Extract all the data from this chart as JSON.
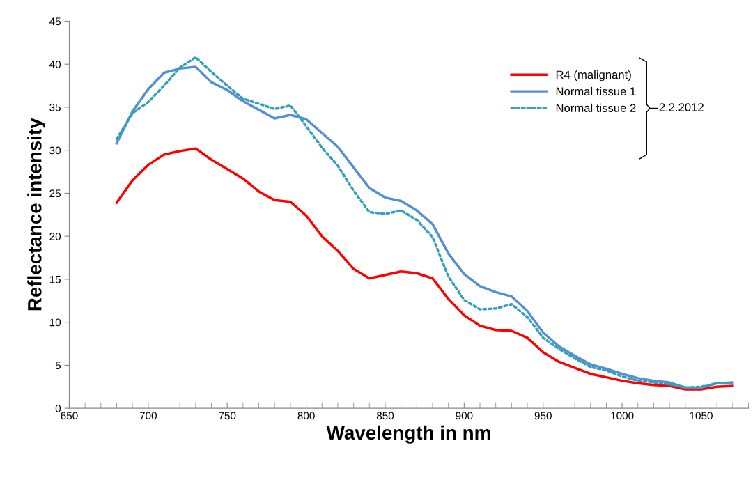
{
  "chart_data": {
    "type": "line",
    "xlabel": "Wavelength in nm",
    "ylabel": "Reflectance intensity",
    "x": [
      680,
      690,
      700,
      710,
      720,
      730,
      740,
      750,
      760,
      770,
      780,
      790,
      800,
      810,
      820,
      830,
      840,
      850,
      860,
      870,
      880,
      890,
      900,
      910,
      920,
      930,
      940,
      950,
      960,
      970,
      980,
      990,
      1000,
      1010,
      1020,
      1030,
      1040,
      1050,
      1060,
      1070
    ],
    "series": [
      {
        "name": "R4 (malignant)",
        "color": "#ff0000",
        "line_style": "solid",
        "values": [
          23.9,
          26.5,
          28.3,
          29.5,
          29.9,
          30.2,
          28.9,
          27.8,
          26.7,
          25.2,
          24.2,
          24.0,
          22.4,
          20.0,
          18.3,
          16.2,
          15.1,
          15.5,
          15.9,
          15.7,
          15.1,
          12.7,
          10.8,
          9.6,
          9.1,
          9.0,
          8.2,
          6.5,
          5.4,
          4.7,
          4.0,
          3.6,
          3.2,
          2.9,
          2.7,
          2.6,
          2.2,
          2.2,
          2.5,
          2.6
        ]
      },
      {
        "name": "Normal tissue 1",
        "color": "#558ed5",
        "line_style": "solid",
        "values": [
          30.8,
          34.5,
          37.1,
          39.0,
          39.5,
          39.7,
          37.9,
          37.0,
          35.7,
          34.7,
          33.7,
          34.1,
          33.6,
          32.0,
          30.4,
          28.0,
          25.6,
          24.5,
          24.1,
          23.0,
          21.4,
          18.0,
          15.6,
          14.2,
          13.5,
          13.0,
          11.3,
          8.8,
          7.2,
          6.1,
          5.1,
          4.6,
          4.0,
          3.5,
          3.2,
          3.0,
          2.4,
          2.4,
          2.9,
          3.0
        ]
      },
      {
        "name": "Normal tissue 2",
        "color": "#31a0b8",
        "line_style": "dotted",
        "values": [
          31.3,
          34.3,
          35.6,
          37.5,
          39.6,
          40.8,
          39.1,
          37.5,
          36.0,
          35.4,
          34.8,
          35.2,
          32.8,
          30.3,
          28.2,
          25.3,
          22.8,
          22.6,
          23.0,
          21.9,
          19.9,
          15.3,
          12.6,
          11.5,
          11.6,
          12.1,
          10.6,
          8.2,
          6.9,
          5.8,
          4.8,
          4.4,
          3.7,
          3.2,
          3.0,
          2.8,
          2.4,
          2.5,
          2.9,
          2.9
        ]
      }
    ],
    "annotations": [
      "2.2.2012"
    ],
    "xlim": [
      650,
      1080
    ],
    "xticks": [
      650,
      700,
      750,
      800,
      850,
      900,
      950,
      1000,
      1050
    ],
    "ylim": [
      0,
      45
    ],
    "yticks": [
      0,
      5,
      10,
      15,
      20,
      25,
      30,
      35,
      40,
      45
    ],
    "grid": false,
    "legend": "top right",
    "marker": "none"
  }
}
